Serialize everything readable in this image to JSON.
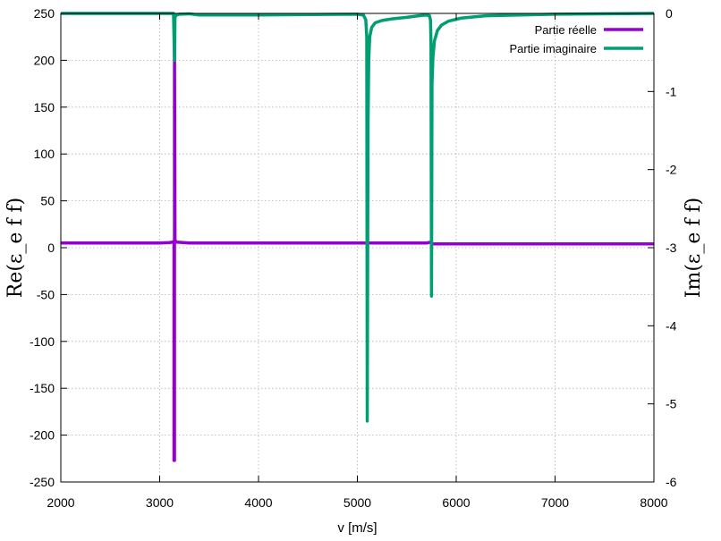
{
  "chart_data": {
    "type": "line",
    "xlabel": "v [m/s]",
    "ylabel_left": "Re(ε_e f f)",
    "ylabel_right": "Im(ε_e f f)",
    "xlim": [
      2000,
      8000
    ],
    "ylim_left": [
      -250,
      250
    ],
    "ylim_right": [
      -6,
      0
    ],
    "x_ticks": [
      2000,
      3000,
      4000,
      5000,
      6000,
      7000,
      8000
    ],
    "y_left_ticks": [
      250,
      200,
      150,
      100,
      50,
      0,
      -50,
      -100,
      -150,
      -200,
      -250
    ],
    "y_right_ticks": [
      0,
      -1,
      -2,
      -3,
      -4,
      -5,
      -6
    ],
    "grid": true,
    "legend_position": "top-right",
    "series": [
      {
        "name": "Partie réelle",
        "axis": "left",
        "color": "#9400d3",
        "x": [
          2000,
          2500,
          3000,
          3100,
          3130,
          3145,
          3145,
          3150,
          3150,
          3155,
          3170,
          3300,
          4000,
          5000,
          5700,
          5745,
          5760,
          6000,
          7000,
          8000
        ],
        "y": [
          5,
          5,
          5,
          5.5,
          6,
          7,
          -227,
          -227,
          215,
          8,
          6,
          5,
          5,
          5,
          5,
          6,
          4,
          4,
          4,
          4
        ]
      },
      {
        "name": "Partie imaginaire",
        "axis": "right",
        "color": "#009e73",
        "x": [
          2000,
          3100,
          3140,
          3150,
          3155,
          3170,
          3200,
          3300,
          3400,
          4000,
          5000,
          5060,
          5085,
          5095,
          5100,
          5108,
          5115,
          5125,
          5145,
          5180,
          5250,
          5350,
          5500,
          5620,
          5700,
          5730,
          5740,
          5745,
          5750,
          5755,
          5765,
          5780,
          5810,
          5850,
          5920,
          6050,
          6300,
          7000,
          8000
        ],
        "y": [
          0,
          0,
          0,
          -0.6,
          -0.05,
          -0.02,
          -0.01,
          -0.005,
          -0.02,
          -0.02,
          -0.01,
          -0.02,
          -0.08,
          -0.3,
          -5.22,
          -1.4,
          -0.6,
          -0.3,
          -0.18,
          -0.12,
          -0.09,
          -0.07,
          -0.05,
          -0.03,
          -0.02,
          -0.03,
          -0.09,
          -0.4,
          -3.62,
          -0.9,
          -0.55,
          -0.35,
          -0.22,
          -0.15,
          -0.1,
          -0.06,
          -0.03,
          -0.01,
          0
        ]
      }
    ]
  }
}
